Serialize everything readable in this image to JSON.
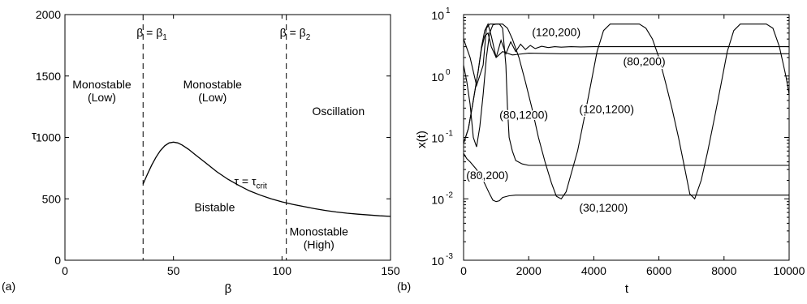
{
  "chart_data": [
    {
      "panel_label": "(a)",
      "type": "line",
      "xlabel": "β",
      "ylabel": "τ",
      "xlim": [
        0,
        150
      ],
      "ylim": [
        0,
        2000
      ],
      "xticks": [
        0,
        50,
        100,
        150
      ],
      "yticks": [
        0,
        500,
        1000,
        1500,
        2000
      ],
      "grid": false,
      "vlines": [
        {
          "x": 36,
          "label": "β = β",
          "sub": "1"
        },
        {
          "x": 102,
          "label": "β = β",
          "sub": "2"
        }
      ],
      "series": [
        {
          "x": [
            36,
            38,
            40,
            42,
            44,
            46,
            48,
            50,
            52,
            54,
            57,
            60,
            65,
            70,
            75,
            80,
            85,
            90,
            95,
            100,
            105,
            110,
            115,
            120,
            125,
            130,
            135,
            140,
            145,
            150
          ],
          "y": [
            620,
            700,
            775,
            840,
            893,
            932,
            955,
            962,
            955,
            938,
            902,
            860,
            790,
            720,
            660,
            610,
            565,
            530,
            500,
            475,
            455,
            437,
            420,
            405,
            393,
            383,
            375,
            368,
            362,
            357
          ]
        }
      ],
      "curve_label": {
        "text": "τ = τ",
        "sub": "crit",
        "x": 78,
        "y": 610
      },
      "regions": [
        {
          "lines": [
            "Monostable",
            "(Low)"
          ],
          "x": 17,
          "y": 1400
        },
        {
          "lines": [
            "Monostable",
            "(Low)"
          ],
          "x": 68,
          "y": 1400
        },
        {
          "lines": [
            "Oscillation"
          ],
          "x": 126,
          "y": 1180
        },
        {
          "lines": [
            "Bistable"
          ],
          "x": 69,
          "y": 400
        },
        {
          "lines": [
            "Monostable",
            "(High)"
          ],
          "x": 117,
          "y": 200
        }
      ]
    },
    {
      "panel_label": "(b)",
      "type": "line",
      "xlabel": "t",
      "ylabel": "x(t)",
      "xlim": [
        0,
        10000
      ],
      "ylim": [
        0.001,
        10
      ],
      "yscale": "log",
      "xticks": [
        0,
        2000,
        4000,
        6000,
        8000,
        10000
      ],
      "yticks": [
        {
          "base": "10",
          "exp": "-3",
          "value": 0.001
        },
        {
          "base": "10",
          "exp": "-2",
          "value": 0.01
        },
        {
          "base": "10",
          "exp": "-1",
          "value": 0.1
        },
        {
          "base": "10",
          "exp": "0",
          "value": 1
        },
        {
          "base": "10",
          "exp": "1",
          "value": 10
        }
      ],
      "grid": false,
      "series": [
        {
          "name": "(120,200)",
          "x": [
            0,
            150,
            300,
            450,
            550,
            650,
            750,
            850,
            1000,
            1150,
            1300,
            1450,
            1600,
            1750,
            1900,
            2050,
            2200,
            2400,
            2600,
            2800,
            3000,
            3300,
            3600,
            4000,
            5000,
            7000,
            10000
          ],
          "y": [
            0.08,
            0.14,
            0.4,
            1.2,
            3.0,
            5.5,
            7.0,
            4.5,
            2.0,
            3.8,
            2.3,
            3.6,
            2.5,
            3.3,
            2.7,
            3.15,
            2.8,
            3.05,
            2.9,
            3.0,
            2.95,
            3.0,
            2.97,
            3.0,
            3.0,
            3.0,
            3.0
          ]
        },
        {
          "name": "(80,200)",
          "x": [
            0,
            150,
            300,
            450,
            550,
            650,
            750,
            850,
            1000,
            1200,
            1500,
            2000,
            3000,
            10000
          ],
          "y": [
            0.08,
            0.14,
            0.4,
            1.2,
            2.8,
            4.5,
            5.0,
            3.0,
            2.0,
            2.5,
            2.2,
            2.35,
            2.3,
            2.3
          ]
        },
        {
          "name": "(80,1200)",
          "x": [
            0,
            100,
            200,
            300,
            400,
            500,
            600,
            700,
            800,
            900,
            1000,
            1100,
            1200,
            1300,
            1350,
            1400,
            1500,
            1600,
            1800,
            2000,
            2400,
            3000,
            10000
          ],
          "y": [
            1.5,
            0.8,
            0.35,
            0.1,
            0.07,
            0.15,
            0.5,
            2.0,
            5.0,
            6.8,
            7.0,
            7.0,
            6.0,
            1.5,
            0.3,
            0.1,
            0.06,
            0.042,
            0.037,
            0.035,
            0.035,
            0.035,
            0.035
          ]
        },
        {
          "name": "(120,1200)",
          "x": [
            0,
            200,
            400,
            600,
            700,
            800,
            1200,
            1350,
            1500,
            1700,
            1900,
            2100,
            2300,
            2500,
            2700,
            2850,
            3000,
            3150,
            3300,
            3500,
            3700,
            3900,
            4100,
            4300,
            4500,
            4700,
            5000,
            5400,
            5600,
            5800,
            6000,
            6200,
            6400,
            6600,
            6800,
            6950,
            7100,
            7300,
            7500,
            7700,
            7900,
            8100,
            8300,
            8500,
            9300,
            9500,
            9700,
            9900,
            10000
          ],
          "y": [
            4.0,
            2.0,
            0.7,
            1.5,
            6.0,
            7.0,
            7.0,
            6.0,
            4.0,
            2.0,
            0.8,
            0.3,
            0.1,
            0.04,
            0.018,
            0.011,
            0.01,
            0.013,
            0.025,
            0.06,
            0.2,
            0.7,
            2.5,
            5.5,
            7.0,
            7.0,
            7.0,
            7.0,
            6.0,
            4.0,
            2.0,
            0.8,
            0.3,
            0.1,
            0.03,
            0.012,
            0.01,
            0.02,
            0.06,
            0.2,
            0.7,
            2.5,
            5.5,
            7.0,
            7.0,
            6.0,
            3.0,
            1.0,
            0.5
          ]
        },
        {
          "name": "(30,1200)",
          "x": [
            0,
            100,
            200,
            400,
            600,
            800,
            900,
            1000,
            1100,
            1200,
            1400,
            1600,
            2000,
            10000
          ],
          "y": [
            0.055,
            0.045,
            0.04,
            0.03,
            0.02,
            0.012,
            0.0095,
            0.009,
            0.0093,
            0.0105,
            0.0112,
            0.0115,
            0.0115,
            0.0115
          ]
        }
      ],
      "annotations": [
        {
          "text": "(120,200)",
          "x": 2100,
          "y": 4.5
        },
        {
          "text": "(80,200)",
          "x": 4900,
          "y": 1.5
        },
        {
          "text": "(80,1200)",
          "x": 1100,
          "y": 0.2
        },
        {
          "text": "(120,1200)",
          "x": 3550,
          "y": 0.25
        },
        {
          "text": "(80,200)",
          "x": 80,
          "y": 0.021
        },
        {
          "text": "(30,1200)",
          "x": 3550,
          "y": 0.0062
        }
      ]
    }
  ]
}
